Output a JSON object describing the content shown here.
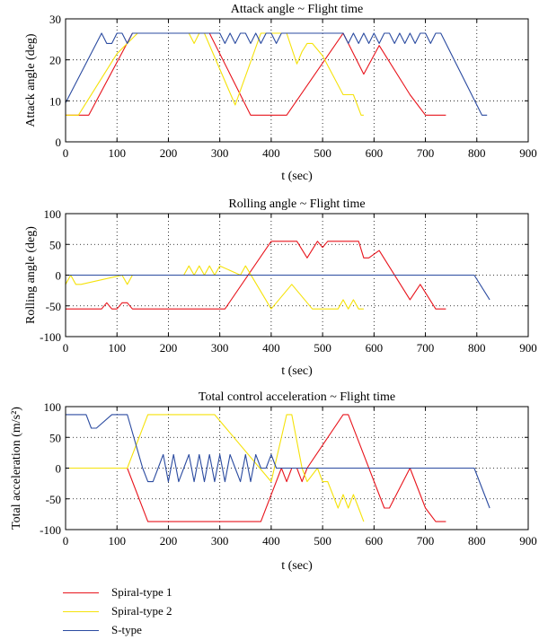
{
  "chart_data": [
    {
      "type": "line",
      "title": "Attack angle ~ Flight time",
      "xlabel": "t (sec)",
      "ylabel": "Attack angle (deg)",
      "xlim": [
        0,
        900
      ],
      "ylim": [
        0,
        30
      ],
      "xticks": [
        0,
        100,
        200,
        300,
        400,
        500,
        600,
        700,
        800,
        900
      ],
      "yticks": [
        0,
        10,
        20,
        30
      ],
      "grid": true,
      "series": [
        {
          "name": "Spiral-type 1",
          "color": "#e8141c",
          "x": [
            0,
            45,
            130,
            280,
            360,
            430,
            540,
            580,
            610,
            670,
            700,
            740
          ],
          "y": [
            6.5,
            6.5,
            26.5,
            26.5,
            6.5,
            6.5,
            26.5,
            16.5,
            23.5,
            11.5,
            6.5,
            6.5
          ]
        },
        {
          "name": "Spiral-type 2",
          "color": "#f5e20a",
          "x": [
            0,
            25,
            100,
            140,
            240,
            250,
            260,
            270,
            330,
            380,
            430,
            450,
            460,
            470,
            480,
            500,
            540,
            560,
            575,
            580
          ],
          "y": [
            6.5,
            6.5,
            21.5,
            26.5,
            26.5,
            24,
            26.5,
            26.5,
            9,
            26.5,
            26.5,
            19,
            22,
            24,
            24,
            21,
            11.5,
            11.5,
            6.5,
            6.5
          ]
        },
        {
          "name": "S-type",
          "color": "#2b4ba0",
          "x": [
            0,
            70,
            80,
            90,
            100,
            110,
            120,
            130,
            140,
            300,
            310,
            320,
            330,
            340,
            350,
            360,
            370,
            380,
            390,
            400,
            410,
            420,
            430,
            540,
            550,
            560,
            570,
            580,
            590,
            600,
            610,
            620,
            630,
            640,
            650,
            660,
            670,
            680,
            690,
            700,
            710,
            720,
            730,
            810,
            820
          ],
          "y": [
            9.5,
            26.5,
            24,
            24,
            26.5,
            26.5,
            24,
            26.5,
            26.5,
            26.5,
            24,
            26.5,
            24,
            26.5,
            26.5,
            24,
            26.5,
            24,
            26.5,
            26.5,
            24,
            26.5,
            26.5,
            26.5,
            24,
            26.5,
            24,
            26.5,
            24,
            26.5,
            24,
            26.5,
            26.5,
            24,
            26.5,
            24,
            26.5,
            24,
            26.5,
            26.5,
            24,
            26.5,
            26.5,
            6.5,
            6.5
          ]
        }
      ]
    },
    {
      "type": "line",
      "title": "Rolling angle ~ Flight time",
      "xlabel": "t (sec)",
      "ylabel": "Rolling angle (deg)",
      "xlim": [
        0,
        900
      ],
      "ylim": [
        -100,
        100
      ],
      "xticks": [
        0,
        100,
        200,
        300,
        400,
        500,
        600,
        700,
        800,
        900
      ],
      "yticks": [
        -100,
        -50,
        0,
        50,
        100
      ],
      "grid": true,
      "series": [
        {
          "name": "Spiral-type 1",
          "color": "#e8141c",
          "x": [
            0,
            70,
            80,
            90,
            100,
            110,
            120,
            130,
            140,
            310,
            400,
            450,
            470,
            490,
            500,
            510,
            530,
            570,
            580,
            590,
            610,
            670,
            690,
            720,
            740
          ],
          "y": [
            -55,
            -55,
            -45,
            -55,
            -55,
            -45,
            -45,
            -55,
            -55,
            -55,
            55,
            55,
            28,
            55,
            45,
            55,
            55,
            55,
            28,
            28,
            40,
            -40,
            -15,
            -55,
            -55
          ]
        },
        {
          "name": "Spiral-type 2",
          "color": "#f5e20a",
          "x": [
            0,
            10,
            20,
            30,
            110,
            120,
            130,
            230,
            240,
            250,
            260,
            270,
            280,
            290,
            300,
            340,
            350,
            400,
            440,
            480,
            530,
            540,
            550,
            560,
            570,
            580
          ],
          "y": [
            -15,
            0,
            -15,
            -15,
            0,
            -15,
            0,
            0,
            15,
            0,
            15,
            0,
            15,
            0,
            15,
            0,
            15,
            -55,
            -15,
            -55,
            -55,
            -40,
            -55,
            -40,
            -55,
            -55
          ]
        },
        {
          "name": "S-type",
          "color": "#2b4ba0",
          "x": [
            0,
            795,
            825
          ],
          "y": [
            0,
            0,
            -40
          ]
        }
      ]
    },
    {
      "type": "line",
      "title": "Total control acceleration ~ Flight time",
      "xlabel": "t (sec)",
      "ylabel": "Total acceleration (m/s²)",
      "xlim": [
        0,
        900
      ],
      "ylim": [
        -100,
        100
      ],
      "xticks": [
        0,
        100,
        200,
        300,
        400,
        500,
        600,
        700,
        800,
        900
      ],
      "yticks": [
        -100,
        -50,
        0,
        50,
        100
      ],
      "grid": true,
      "series": [
        {
          "name": "Spiral-type 1",
          "color": "#e8141c",
          "x": [
            0,
            120,
            160,
            380,
            420,
            430,
            440,
            450,
            460,
            470,
            540,
            550,
            620,
            630,
            670,
            700,
            720,
            740
          ],
          "y": [
            0,
            0,
            -87,
            -87,
            0,
            -22,
            0,
            0,
            -22,
            0,
            87,
            87,
            -65,
            -65,
            0,
            -65,
            -87,
            -87
          ]
        },
        {
          "name": "Spiral-type 2",
          "color": "#f5e20a",
          "x": [
            0,
            120,
            160,
            290,
            400,
            430,
            440,
            460,
            470,
            490,
            500,
            510,
            530,
            540,
            550,
            560,
            570,
            580
          ],
          "y": [
            0,
            0,
            87,
            87,
            -22,
            87,
            87,
            0,
            -22,
            0,
            -22,
            -22,
            -65,
            -43,
            -65,
            -43,
            -65,
            -87
          ]
        },
        {
          "name": "S-type",
          "color": "#2b4ba0",
          "x": [
            0,
            40,
            50,
            60,
            90,
            120,
            150,
            160,
            170,
            180,
            190,
            200,
            210,
            220,
            230,
            240,
            250,
            260,
            270,
            280,
            290,
            300,
            310,
            320,
            330,
            340,
            350,
            360,
            370,
            380,
            390,
            400,
            410,
            420,
            430,
            795,
            825
          ],
          "y": [
            87,
            87,
            65,
            65,
            87,
            87,
            0,
            -22,
            -22,
            0,
            22,
            -22,
            22,
            -22,
            0,
            22,
            -22,
            22,
            -22,
            22,
            -22,
            22,
            -22,
            22,
            0,
            -22,
            22,
            -22,
            22,
            0,
            0,
            22,
            0,
            0,
            0,
            0,
            -65
          ]
        }
      ]
    }
  ],
  "legend": {
    "position": "bottom-left",
    "items": [
      {
        "label": "Spiral-type 1",
        "color": "#e8141c"
      },
      {
        "label": "Spiral-type 2",
        "color": "#f5e20a"
      },
      {
        "label": "S-type",
        "color": "#2b4ba0"
      }
    ]
  }
}
